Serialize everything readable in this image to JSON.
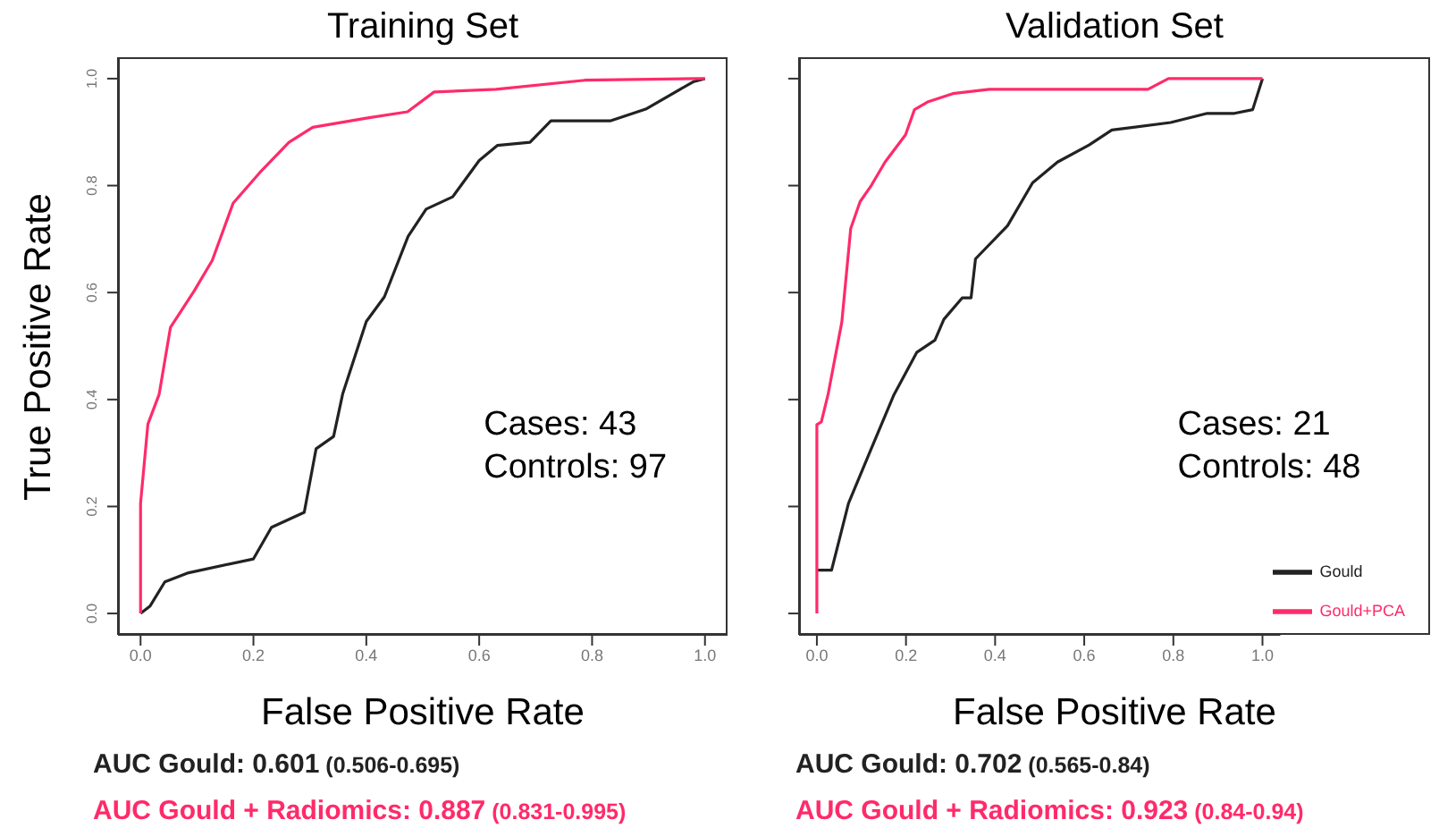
{
  "chart_data": [
    {
      "type": "line",
      "title": "Training Set",
      "xlabel": "False Positive Rate",
      "ylabel": "True Positive Rate",
      "xlim": [
        -0.04,
        1.04
      ],
      "ylim": [
        -0.04,
        1.04
      ],
      "xticks": [
        {
          "value": 0,
          "label": "0.0"
        },
        {
          "value": 0.2,
          "label": "0.2"
        },
        {
          "value": 0.4,
          "label": "0.4"
        },
        {
          "value": 0.6,
          "label": "0.6"
        },
        {
          "value": 0.8,
          "label": "0.8"
        },
        {
          "value": 1,
          "label": "1.0"
        }
      ],
      "yticks": [
        {
          "value": 0,
          "label": "0.0"
        },
        {
          "value": 0.2,
          "label": "0.2"
        },
        {
          "value": 0.4,
          "label": "0.4"
        },
        {
          "value": 0.6,
          "label": "0.6"
        },
        {
          "value": 0.8,
          "label": "0.8"
        },
        {
          "value": 1,
          "label": "1.0"
        }
      ],
      "legend": false,
      "series": [
        {
          "color": "#222222",
          "x": [
            0,
            0.017,
            0.043,
            0.085,
            0.2,
            0.232,
            0.29,
            0.311,
            0.342,
            0.358,
            0.4,
            0.432,
            0.474,
            0.506,
            0.553,
            0.6,
            0.632,
            0.69,
            0.727,
            0.832,
            0.895,
            0.979,
            1
          ],
          "values": [
            0,
            0.014,
            0.059,
            0.076,
            0.102,
            0.161,
            0.189,
            0.308,
            0.331,
            0.41,
            0.546,
            0.592,
            0.705,
            0.756,
            0.779,
            0.847,
            0.875,
            0.881,
            0.921,
            0.921,
            0.943,
            0.994,
            1
          ]
        },
        {
          "color": "#ff2a6a",
          "x": [
            0,
            0,
            0.013,
            0.033,
            0.053,
            0.095,
            0.127,
            0.164,
            0.211,
            0.263,
            0.305,
            0.4,
            0.473,
            0.52,
            0.63,
            0.787,
            0.986,
            1
          ],
          "values": [
            0,
            0.206,
            0.354,
            0.41,
            0.535,
            0.603,
            0.66,
            0.767,
            0.824,
            0.881,
            0.909,
            0.926,
            0.938,
            0.975,
            0.98,
            0.997,
            1,
            1
          ]
        }
      ],
      "annotations": [
        "Cases: 43",
        "Controls: 97",
        "AUC Gould: 0.601 (0.506-0.695)",
        "AUC Gould + Radiomics: 0.887 (0.831-0.995)"
      ]
    },
    {
      "type": "line",
      "title": "Validation Set",
      "xlabel": "False Positive Rate",
      "xlim": [
        -0.04,
        1.04
      ],
      "ylim": [
        -0.04,
        1.04
      ],
      "tick_labels": "x",
      "xticks": [
        {
          "value": 0,
          "label": "0.0"
        },
        {
          "value": 0.2,
          "label": "0.2"
        },
        {
          "value": 0.4,
          "label": "0.4"
        },
        {
          "value": 0.6,
          "label": "0.6"
        },
        {
          "value": 0.8,
          "label": "0.8"
        },
        {
          "value": 1,
          "label": "1.0"
        }
      ],
      "yticks": [
        0,
        0.2,
        0.4,
        0.6,
        0.8,
        1
      ],
      "legend": "bottom right",
      "series": [
        {
          "name": "Gould",
          "color": "#222222",
          "x": [
            0,
            0.033,
            0.071,
            0.122,
            0.173,
            0.224,
            0.265,
            0.285,
            0.326,
            0.346,
            0.356,
            0.428,
            0.484,
            0.54,
            0.611,
            0.662,
            0.794,
            0.876,
            0.937,
            0.978,
            1
          ],
          "values": [
            0.081,
            0.081,
            0.206,
            0.308,
            0.409,
            0.488,
            0.511,
            0.55,
            0.59,
            0.59,
            0.663,
            0.725,
            0.805,
            0.844,
            0.876,
            0.904,
            0.918,
            0.935,
            0.935,
            0.942,
            1
          ]
        },
        {
          "name": "Gould+PCA",
          "color": "#ff2a6a",
          "x": [
            0,
            0,
            0.01,
            0.025,
            0.056,
            0.076,
            0.097,
            0.122,
            0.153,
            0.199,
            0.219,
            0.25,
            0.305,
            0.387,
            0.743,
            0.789,
            1
          ],
          "values": [
            0,
            0.353,
            0.358,
            0.409,
            0.545,
            0.72,
            0.77,
            0.8,
            0.844,
            0.895,
            0.942,
            0.957,
            0.972,
            0.98,
            0.98,
            1,
            1
          ]
        }
      ],
      "annotations": [
        "Cases: 21",
        "Controls: 48",
        "AUC Gould: 0.702 (0.565-0.84)",
        "AUC Gould + Radiomics: 0.923 (0.84-0.94)"
      ]
    }
  ]
}
